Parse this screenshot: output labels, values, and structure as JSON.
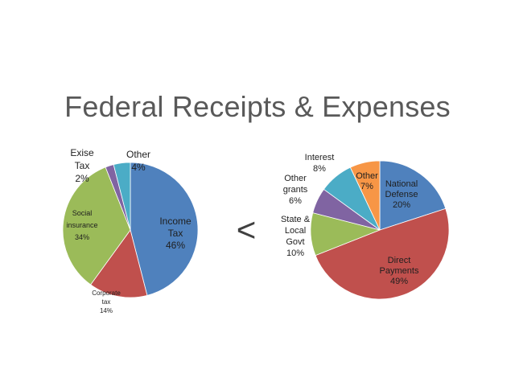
{
  "slide": {
    "title": "Federal Receipts & Expenses",
    "comparison_symbol": "<"
  },
  "chart_data": [
    {
      "type": "pie",
      "title": "",
      "slices": [
        {
          "name": "Income Tax",
          "value": 46,
          "label_lines": [
            "Income",
            "Tax",
            "46%"
          ],
          "color": "#4f81bd"
        },
        {
          "name": "Corporate tax",
          "value": 14,
          "label_lines": [
            "Corporate",
            "tax",
            "14%"
          ],
          "color": "#c0504d"
        },
        {
          "name": "Social insurance",
          "value": 34,
          "label_lines": [
            "Social",
            "insurance",
            "34%"
          ],
          "color": "#9bbb59"
        },
        {
          "name": "Exise Tax",
          "value": 2,
          "label_lines": [
            "Exise",
            "Tax",
            "2%"
          ],
          "color": "#8064a2"
        },
        {
          "name": "Other",
          "value": 4,
          "label_lines": [
            "Other",
            "4%"
          ],
          "color": "#4bacc6"
        }
      ]
    },
    {
      "type": "pie",
      "title": "",
      "slices": [
        {
          "name": "National Defense",
          "value": 20,
          "label_lines": [
            "National",
            "Defense",
            "20%"
          ],
          "color": "#4f81bd"
        },
        {
          "name": "Direct Payments",
          "value": 49,
          "label_lines": [
            "Direct",
            "Payments",
            "49%"
          ],
          "color": "#c0504d"
        },
        {
          "name": "State & Local Govt",
          "value": 10,
          "label_lines": [
            "State &",
            "Local",
            "Govt",
            "10%"
          ],
          "color": "#9bbb59"
        },
        {
          "name": "Other grants",
          "value": 6,
          "label_lines": [
            "Other",
            "grants",
            "6%"
          ],
          "color": "#8064a2"
        },
        {
          "name": "Interest",
          "value": 8,
          "label_lines": [
            "Interest",
            "8%"
          ],
          "color": "#4bacc6"
        },
        {
          "name": "Other",
          "value": 7,
          "label_lines": [
            "Other",
            "7%"
          ],
          "color": "#f79646"
        }
      ]
    }
  ]
}
